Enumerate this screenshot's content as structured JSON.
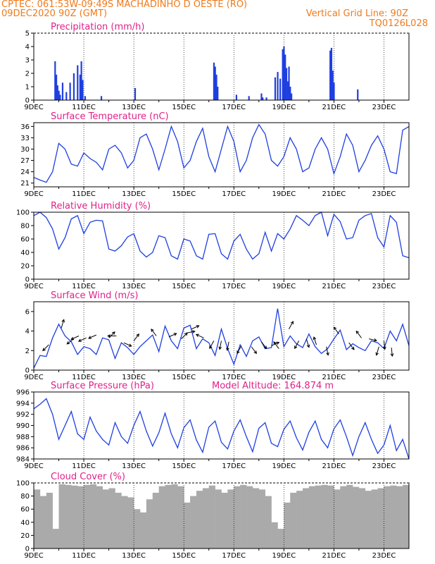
{
  "header": {
    "line1": "CPTEC:   061:53W-09:49S   MACHADINHO D OESTE (RO)",
    "line2_left": "09DEC2020 90Z (GMT)",
    "line2_right": "Vertical Grid Line: 90Z",
    "line3_right": "TQ0126L028",
    "model_altitude": "Model Altitude: 164.874 m"
  },
  "colors": {
    "header": "#f07a1a",
    "title": "#e0208a",
    "line": "#1f3fe0",
    "cloud": "#aaaaaa"
  },
  "x_axis": {
    "labels": [
      "9DEC",
      "11DEC",
      "13DEC",
      "15DEC",
      "17DEC",
      "19DEC",
      "21DEC",
      "23DEC"
    ],
    "label_days": [
      0,
      2,
      4,
      6,
      8,
      10,
      12,
      14
    ],
    "range_days": [
      0,
      15
    ]
  },
  "chart_data": [
    {
      "type": "bar",
      "title": "Precipitation (mm/h)",
      "ylim": [
        0,
        5
      ],
      "yticks": [
        0,
        1,
        2,
        3,
        4,
        5
      ],
      "x": [
        0.85,
        0.9,
        0.95,
        1.0,
        1.05,
        1.15,
        1.3,
        1.45,
        1.6,
        1.75,
        1.85,
        1.9,
        1.95,
        2.05,
        2.7,
        4.05,
        7.2,
        7.25,
        7.3,
        7.35,
        8.1,
        8.6,
        9.1,
        9.15,
        9.3,
        9.65,
        9.75,
        9.85,
        9.95,
        10.0,
        10.05,
        10.1,
        10.15,
        10.2,
        10.25,
        10.3,
        11.85,
        11.9,
        11.95,
        12.0,
        12.95
      ],
      "values": [
        2.9,
        1.9,
        1.1,
        0.7,
        0.4,
        1.3,
        0.6,
        1.3,
        2.0,
        2.6,
        1.9,
        2.9,
        1.5,
        0.3,
        0.3,
        0.9,
        2.8,
        2.5,
        1.9,
        1.0,
        0.4,
        0.3,
        0.5,
        0.2,
        0.2,
        1.7,
        2.1,
        1.6,
        3.8,
        4.0,
        3.4,
        2.4,
        1.4,
        2.5,
        1.0,
        0.5,
        3.7,
        3.9,
        2.2,
        1.3,
        0.8
      ]
    },
    {
      "type": "line",
      "title": "Surface Temperature (nC)",
      "ylim": [
        20,
        37
      ],
      "yticks": [
        21,
        24,
        27,
        30,
        33,
        36
      ],
      "x": [
        0,
        0.25,
        0.5,
        0.75,
        1.0,
        1.25,
        1.5,
        1.75,
        2.0,
        2.25,
        2.5,
        2.75,
        3.0,
        3.25,
        3.5,
        3.75,
        4.0,
        4.25,
        4.5,
        4.75,
        5.0,
        5.25,
        5.5,
        5.75,
        6.0,
        6.25,
        6.5,
        6.75,
        7.0,
        7.25,
        7.5,
        7.75,
        8.0,
        8.25,
        8.5,
        8.75,
        9.0,
        9.25,
        9.5,
        9.75,
        10.0,
        10.25,
        10.5,
        10.75,
        11.0,
        11.25,
        11.5,
        11.75,
        12.0,
        12.25,
        12.5,
        12.75,
        13.0,
        13.25,
        13.5,
        13.75,
        14.0,
        14.25,
        14.5,
        14.75,
        15.0
      ],
      "values": [
        22.5,
        21.8,
        21.2,
        24,
        31.5,
        30,
        26,
        25.5,
        29,
        27.5,
        26.5,
        24.5,
        30,
        31,
        29,
        25,
        27,
        33,
        34,
        30,
        24.5,
        30,
        36,
        32,
        25,
        27,
        32,
        35.5,
        28,
        24,
        30,
        36,
        32,
        24,
        27,
        33,
        36.5,
        34,
        27,
        25.5,
        28,
        33,
        30,
        24,
        25,
        30,
        33,
        30,
        23.5,
        28,
        34,
        31,
        24,
        27,
        31,
        33.5,
        30,
        24,
        23.5,
        35,
        36
      ]
    },
    {
      "type": "line",
      "title": "Relative Humidity (%)",
      "ylim": [
        0,
        100
      ],
      "yticks": [
        0,
        20,
        40,
        60,
        80,
        100
      ],
      "x": [
        0,
        0.25,
        0.5,
        0.75,
        1.0,
        1.25,
        1.5,
        1.75,
        2.0,
        2.25,
        2.5,
        2.75,
        3.0,
        3.25,
        3.5,
        3.75,
        4.0,
        4.25,
        4.5,
        4.75,
        5.0,
        5.25,
        5.5,
        5.75,
        6.0,
        6.25,
        6.5,
        6.75,
        7.0,
        7.25,
        7.5,
        7.75,
        8.0,
        8.25,
        8.5,
        8.75,
        9.0,
        9.25,
        9.5,
        9.75,
        10.0,
        10.25,
        10.5,
        10.75,
        11.0,
        11.25,
        11.5,
        11.75,
        12.0,
        12.25,
        12.5,
        12.75,
        13.0,
        13.25,
        13.5,
        13.75,
        14.0,
        14.25,
        14.5,
        14.75,
        15.0
      ],
      "values": [
        95,
        100,
        92,
        75,
        45,
        62,
        90,
        95,
        68,
        85,
        88,
        87,
        45,
        42,
        50,
        63,
        68,
        42,
        33,
        40,
        65,
        62,
        35,
        30,
        60,
        57,
        35,
        30,
        67,
        68,
        38,
        30,
        57,
        67,
        45,
        30,
        38,
        70,
        42,
        68,
        60,
        75,
        95,
        88,
        80,
        95,
        100,
        65,
        97,
        86,
        60,
        62,
        88,
        95,
        98,
        62,
        48,
        95,
        85,
        35,
        32
      ]
    },
    {
      "type": "line",
      "title": "Surface Wind (m/s)",
      "ylim": [
        0,
        7
      ],
      "yticks": [
        0,
        2,
        4,
        6
      ],
      "x": [
        0,
        0.25,
        0.5,
        0.75,
        1.0,
        1.25,
        1.5,
        1.75,
        2.0,
        2.25,
        2.5,
        2.75,
        3.0,
        3.25,
        3.5,
        3.75,
        4.0,
        4.25,
        4.5,
        4.75,
        5.0,
        5.25,
        5.5,
        5.75,
        6.0,
        6.25,
        6.5,
        6.75,
        7.0,
        7.25,
        7.5,
        7.75,
        8.0,
        8.25,
        8.5,
        8.75,
        9.0,
        9.25,
        9.5,
        9.75,
        10.0,
        10.25,
        10.5,
        10.75,
        11.0,
        11.25,
        11.5,
        11.75,
        12.0,
        12.25,
        12.5,
        12.75,
        13.0,
        13.25,
        13.5,
        13.75,
        14.0,
        14.25,
        14.5,
        14.75,
        15.0
      ],
      "values": [
        0.2,
        1.5,
        1.4,
        3.3,
        4.7,
        3.5,
        2.9,
        1.6,
        2.4,
        2.2,
        1.6,
        3.3,
        3.1,
        1.2,
        2.8,
        2.3,
        1.6,
        2.4,
        3.0,
        3.6,
        1.9,
        4.5,
        3.0,
        2.2,
        4.3,
        4.6,
        2.2,
        3.2,
        2.8,
        1.5,
        4.2,
        2.2,
        0.6,
        2.6,
        1.4,
        3.0,
        3.4,
        2.2,
        2.3,
        6.3,
        2.4,
        3.5,
        2.7,
        2.3,
        3.7,
        2.4,
        1.7,
        2.2,
        3.2,
        4.1,
        2.1,
        2.7,
        2.3,
        2.0,
        3.0,
        2.8,
        2.2,
        4.0,
        3.0,
        4.7,
        2.5
      ],
      "arrows_x": [
        0.6,
        1.1,
        1.6,
        1.8,
        2.1,
        2.5,
        3.0,
        3.3,
        3.6,
        4.0,
        4.9,
        5.4,
        5.9,
        6.1,
        6.3,
        6.8,
        7.2,
        7.5,
        7.8,
        8.3,
        8.7,
        9.1,
        9.5,
        9.8,
        10.2,
        10.6,
        10.9,
        11.3,
        11.7,
        12.2,
        12.6,
        13.1,
        13.4,
        13.8,
        14.0,
        14.3
      ],
      "arrows_y": [
        2.6,
        4.3,
        3.2,
        3.5,
        3.3,
        3.6,
        3.3,
        3.5,
        2.8,
        3.0,
        3.5,
        3.4,
        3.2,
        3.8,
        4.2,
        3.3,
        3.0,
        3.0,
        2.9,
        2.5,
        2.4,
        2.9,
        2.5,
        2.2,
        4.2,
        3.0,
        3.2,
        2.6,
        2.4,
        3.7,
        2.8,
        3.3,
        3.2,
        2.4,
        3.0,
        2.3
      ],
      "arrows_u": [
        -0.7,
        0.3,
        -0.8,
        -0.9,
        -0.9,
        -0.9,
        0.7,
        -1.0,
        0.9,
        0.6,
        -0.6,
        0.9,
        0.7,
        1.0,
        0.9,
        -0.9,
        -0.5,
        -0.2,
        -0.2,
        -0.5,
        0.6,
        0.6,
        0.9,
        -0.6,
        0.5,
        -0.5,
        0.3,
        -0.3,
        0.2,
        -0.6,
        0.6,
        -0.6,
        0.9,
        -0.3,
        0.1,
        0.1
      ],
      "arrows_v": [
        -0.7,
        1.0,
        -0.6,
        -0.4,
        -0.4,
        -0.4,
        0.7,
        0.0,
        -0.4,
        0.8,
        0.8,
        0.4,
        0.7,
        0.2,
        0.4,
        0.4,
        -0.9,
        -1.0,
        -1.0,
        -0.9,
        -0.8,
        -0.8,
        0.4,
        0.8,
        0.9,
        -0.9,
        -1.0,
        0.9,
        -1.0,
        0.8,
        -0.8,
        0.8,
        -0.2,
        -1.0,
        -1.0,
        -1.0
      ]
    },
    {
      "type": "line",
      "title": "Surface Pressure (hPa)",
      "ylim": [
        984,
        996
      ],
      "yticks": [
        984,
        986,
        988,
        990,
        992,
        994,
        996
      ],
      "x": [
        0,
        0.25,
        0.5,
        0.75,
        1.0,
        1.25,
        1.5,
        1.75,
        2.0,
        2.25,
        2.5,
        2.75,
        3.0,
        3.25,
        3.5,
        3.75,
        4.0,
        4.25,
        4.5,
        4.75,
        5.0,
        5.25,
        5.5,
        5.75,
        6.0,
        6.25,
        6.5,
        6.75,
        7.0,
        7.25,
        7.5,
        7.75,
        8.0,
        8.25,
        8.5,
        8.75,
        9.0,
        9.25,
        9.5,
        9.75,
        10.0,
        10.25,
        10.5,
        10.75,
        11.0,
        11.25,
        11.5,
        11.75,
        12.0,
        12.25,
        12.5,
        12.75,
        13.0,
        13.25,
        13.5,
        13.75,
        14.0,
        14.25,
        14.5,
        14.75,
        15.0
      ],
      "values": [
        993,
        993.8,
        994.8,
        992,
        987.5,
        990,
        992.5,
        988.5,
        987.5,
        991.5,
        989,
        987.5,
        986.5,
        990.5,
        988,
        986.8,
        990,
        992.5,
        989,
        986.3,
        988.7,
        992.2,
        988.5,
        986,
        989.6,
        991,
        987.4,
        985.2,
        989.7,
        990.8,
        987,
        985.8,
        989,
        991,
        988,
        985.3,
        989.5,
        990.5,
        986.8,
        986.2,
        989.3,
        990.8,
        987.8,
        985.6,
        988.8,
        990.8,
        987.5,
        986,
        989.4,
        991,
        988,
        984.6,
        988,
        990.5,
        987.5,
        985,
        986.5,
        990,
        985.5,
        987.5,
        984
      ]
    },
    {
      "type": "bar",
      "title": "Cloud Cover (%)",
      "ylim": [
        0,
        100
      ],
      "yticks": [
        0,
        20,
        40,
        60,
        80,
        100
      ],
      "x": [
        0.0,
        0.25,
        0.5,
        0.75,
        1.0,
        1.25,
        1.5,
        1.75,
        2.0,
        2.25,
        2.5,
        2.75,
        3.0,
        3.25,
        3.5,
        3.75,
        4.0,
        4.25,
        4.5,
        4.75,
        5.0,
        5.25,
        5.5,
        5.75,
        6.0,
        6.25,
        6.5,
        6.75,
        7.0,
        7.25,
        7.5,
        7.75,
        8.0,
        8.25,
        8.5,
        8.75,
        9.0,
        9.25,
        9.5,
        9.75,
        10.0,
        10.25,
        10.5,
        10.75,
        11.0,
        11.25,
        11.5,
        11.75,
        12.0,
        12.25,
        12.5,
        12.75,
        13.0,
        13.25,
        13.5,
        13.75,
        14.0,
        14.25,
        14.5,
        14.75
      ],
      "values": [
        90,
        80,
        85,
        30,
        98,
        97,
        96,
        95,
        97,
        98,
        95,
        90,
        92,
        85,
        80,
        78,
        60,
        55,
        75,
        85,
        95,
        97,
        98,
        95,
        70,
        80,
        88,
        92,
        96,
        90,
        85,
        90,
        95,
        97,
        95,
        92,
        90,
        80,
        40,
        30,
        70,
        85,
        88,
        92,
        95,
        96,
        97,
        96,
        90,
        95,
        97,
        94,
        92,
        88,
        90,
        92,
        95,
        96,
        95,
        97
      ]
    }
  ]
}
